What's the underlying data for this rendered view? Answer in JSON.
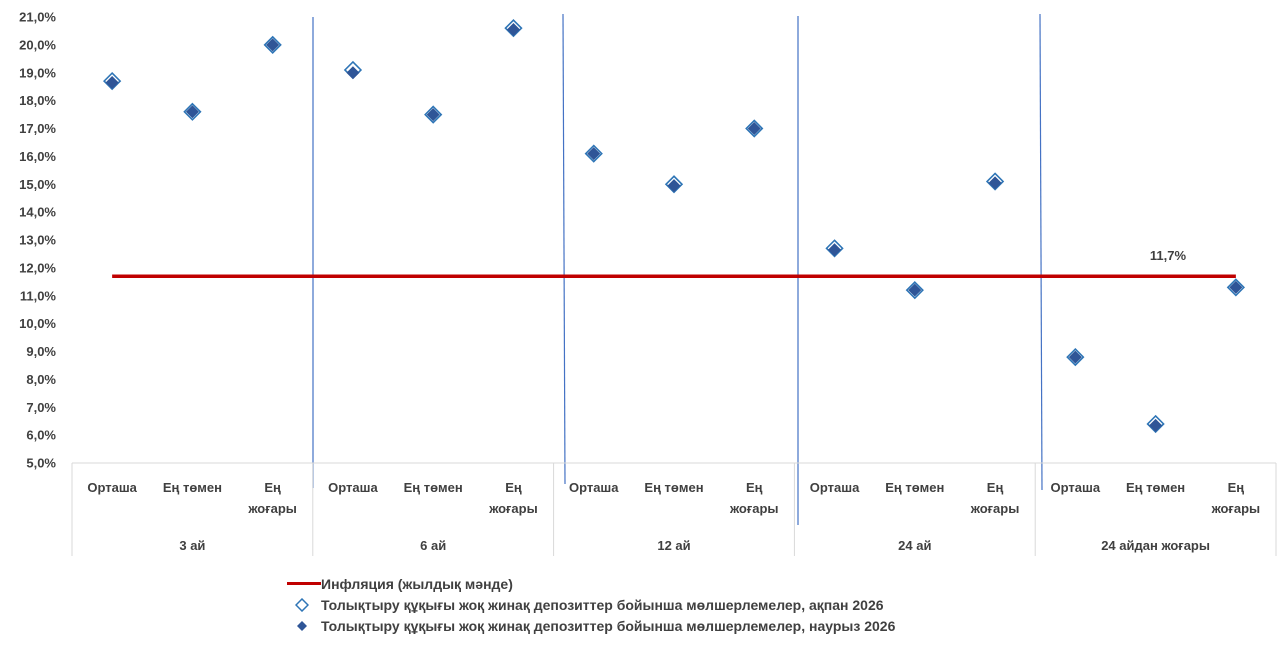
{
  "chart_data": {
    "type": "scatter",
    "groups": [
      {
        "name": "3 ай",
        "categories": [
          "Орташа",
          "Ең төмен",
          "Ең\nжоғары"
        ]
      },
      {
        "name": "6 ай",
        "categories": [
          "Орташа",
          "Ең төмен",
          "Ең\nжоғары"
        ]
      },
      {
        "name": "12 ай",
        "categories": [
          "Орташа",
          "Ең төмен",
          "Ең\nжоғары"
        ]
      },
      {
        "name": "24 ай",
        "categories": [
          "Орташа",
          "Ең төмен",
          "Ең\nжоғары"
        ]
      },
      {
        "name": "24 айдан жоғары",
        "categories": [
          "Орташа",
          "Ең төмен",
          "Ең\nжоғары"
        ]
      }
    ],
    "series": [
      {
        "name": "Толықтыру құқығы жоқ жинақ депозиттер бойынша мөлшерлемелер, ақпан 2026",
        "marker": "diamond-open",
        "color": "#2e75b6",
        "values": [
          18.7,
          17.6,
          20.0,
          19.1,
          17.5,
          20.6,
          16.1,
          15.0,
          17.0,
          12.7,
          11.2,
          15.1,
          8.8,
          6.4,
          11.3
        ]
      },
      {
        "name": "Толықтыру құқығы жоқ жинақ депозиттер бойынша мөлшерлемелер, наурыз 2026",
        "marker": "diamond-filled",
        "color": "#2f5597",
        "values": [
          18.65,
          17.6,
          20.0,
          19.0,
          17.5,
          20.55,
          16.1,
          14.95,
          17.0,
          12.65,
          11.2,
          15.05,
          8.8,
          6.35,
          11.3
        ]
      }
    ],
    "inflation": {
      "name": "Инфляция (жылдық мәнде)",
      "value": 11.7,
      "label": "11,7%",
      "color": "#c00000"
    },
    "y_axis": {
      "min": 5.0,
      "max": 21.0,
      "step": 1.0,
      "tick_labels": [
        "5,0%",
        "6,0%",
        "7,0%",
        "8,0%",
        "9,0%",
        "10,0%",
        "11,0%",
        "12,0%",
        "13,0%",
        "14,0%",
        "15,0%",
        "16,0%",
        "17,0%",
        "18,0%",
        "19,0%",
        "20,0%",
        "21,0%"
      ]
    },
    "legend_position": "bottom",
    "grid": false
  }
}
